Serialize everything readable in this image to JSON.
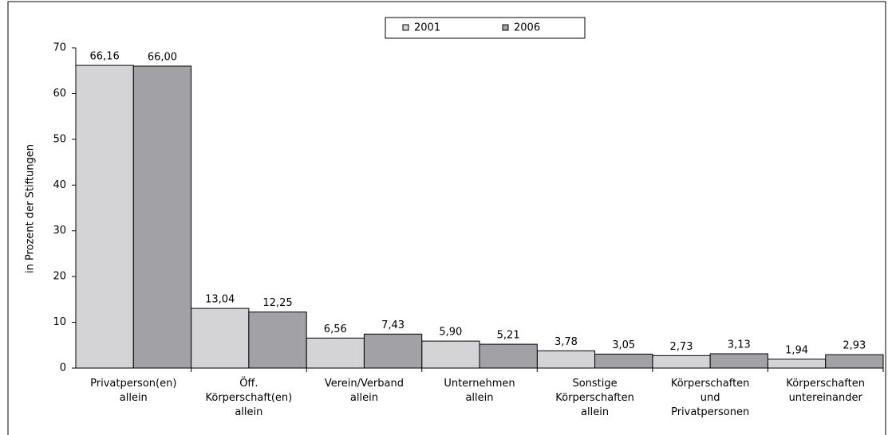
{
  "chart_data": {
    "type": "bar",
    "y_label": "in Prozent der Stiftungen",
    "categories": [
      "Privatperson(en) allein",
      "Öff. Körperschaft(en) allein",
      "Verein/Verband allein",
      "Unternehmen allein",
      "Sonstige Körperschaften allein",
      "Körperschaften und Privatpersonen",
      "Körperschaften untereinander"
    ],
    "series": [
      {
        "name": "2001",
        "color": "#d4d4d6",
        "values": [
          66.16,
          13.04,
          6.56,
          5.9,
          3.78,
          2.73,
          1.94
        ],
        "value_labels": [
          "66,16",
          "13,04",
          "6,56",
          "5,90",
          "3,78",
          "2,73",
          "1,94"
        ]
      },
      {
        "name": "2006",
        "color": "#a2a2a6",
        "values": [
          66.0,
          12.25,
          7.43,
          5.21,
          3.05,
          3.13,
          2.93
        ],
        "value_labels": [
          "66,00",
          "12,25",
          "7,43",
          "5,21",
          "3,05",
          "3,13",
          "2,93"
        ]
      }
    ],
    "ylim": [
      0,
      70
    ],
    "yticks": [
      0,
      10,
      20,
      30,
      40,
      50,
      60,
      70
    ],
    "legend": "top"
  }
}
